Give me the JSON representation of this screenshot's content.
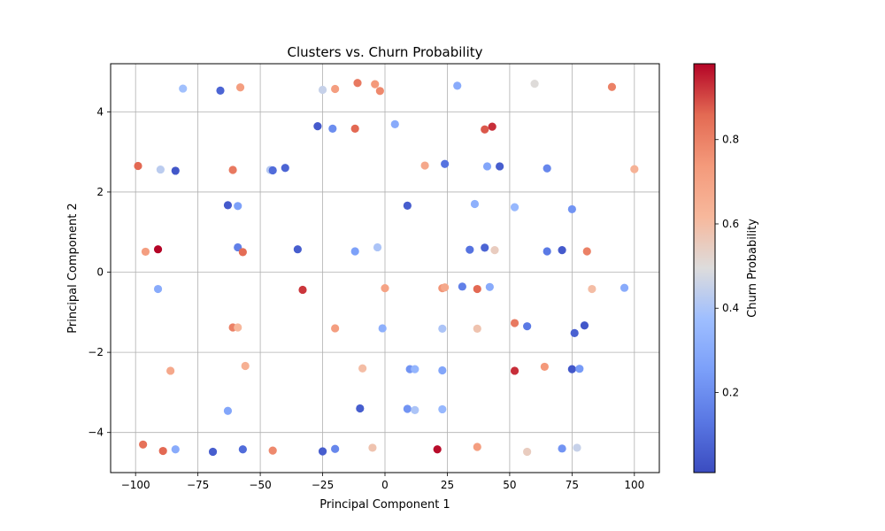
{
  "chart_data": {
    "type": "scatter",
    "title": "Clusters vs. Churn Probability",
    "xlabel": "Principal Component 1",
    "ylabel": "Principal Component 2",
    "xlim": [
      -110,
      110
    ],
    "ylim": [
      -5.0,
      5.2
    ],
    "xticks": [
      -100,
      -75,
      -50,
      -25,
      0,
      25,
      50,
      75,
      100
    ],
    "xtick_labels": [
      "−100",
      "−75",
      "−50",
      "−25",
      "0",
      "25",
      "50",
      "75",
      "100"
    ],
    "yticks": [
      -4,
      -2,
      0,
      2,
      4
    ],
    "ytick_labels": [
      "−4",
      "−2",
      "0",
      "2",
      "4"
    ],
    "grid": true,
    "colormap": "coolwarm",
    "colorbar": {
      "label": "Churn Probability",
      "range": [
        0.01,
        0.98
      ],
      "ticks": [
        0.2,
        0.4,
        0.6,
        0.8
      ],
      "tick_labels": [
        "0.2",
        "0.4",
        "0.6",
        "0.8"
      ]
    },
    "points": [
      {
        "x": -81,
        "y": 4.58,
        "c": 0.38
      },
      {
        "x": -66,
        "y": 4.53,
        "c": 0.08
      },
      {
        "x": -58,
        "y": 4.61,
        "c": 0.72
      },
      {
        "x": -25,
        "y": 4.55,
        "c": 0.45
      },
      {
        "x": -20,
        "y": 4.57,
        "c": 0.72
      },
      {
        "x": -11,
        "y": 4.72,
        "c": 0.82
      },
      {
        "x": -4,
        "y": 4.69,
        "c": 0.74
      },
      {
        "x": -2,
        "y": 4.52,
        "c": 0.78
      },
      {
        "x": 29,
        "y": 4.65,
        "c": 0.3
      },
      {
        "x": 60,
        "y": 4.7,
        "c": 0.5
      },
      {
        "x": 91,
        "y": 4.62,
        "c": 0.8
      },
      {
        "x": -27,
        "y": 3.64,
        "c": 0.05
      },
      {
        "x": -21,
        "y": 3.58,
        "c": 0.2
      },
      {
        "x": -12,
        "y": 3.58,
        "c": 0.86
      },
      {
        "x": 4,
        "y": 3.69,
        "c": 0.3
      },
      {
        "x": 40,
        "y": 3.56,
        "c": 0.88
      },
      {
        "x": 43,
        "y": 3.63,
        "c": 0.93
      },
      {
        "x": -99,
        "y": 2.65,
        "c": 0.86
      },
      {
        "x": -90,
        "y": 2.56,
        "c": 0.43
      },
      {
        "x": -84,
        "y": 2.53,
        "c": 0.04
      },
      {
        "x": -61,
        "y": 2.55,
        "c": 0.82
      },
      {
        "x": -46,
        "y": 2.55,
        "c": 0.42
      },
      {
        "x": -45,
        "y": 2.54,
        "c": 0.1
      },
      {
        "x": -40,
        "y": 2.6,
        "c": 0.08
      },
      {
        "x": 16,
        "y": 2.66,
        "c": 0.68
      },
      {
        "x": 24,
        "y": 2.7,
        "c": 0.12
      },
      {
        "x": 41,
        "y": 2.64,
        "c": 0.28
      },
      {
        "x": 46,
        "y": 2.64,
        "c": 0.06
      },
      {
        "x": 65,
        "y": 2.59,
        "c": 0.18
      },
      {
        "x": 100,
        "y": 2.57,
        "c": 0.64
      },
      {
        "x": -63,
        "y": 1.67,
        "c": 0.05
      },
      {
        "x": -59,
        "y": 1.65,
        "c": 0.26
      },
      {
        "x": 9,
        "y": 1.66,
        "c": 0.06
      },
      {
        "x": 36,
        "y": 1.7,
        "c": 0.32
      },
      {
        "x": 52,
        "y": 1.62,
        "c": 0.35
      },
      {
        "x": 75,
        "y": 1.57,
        "c": 0.22
      },
      {
        "x": -96,
        "y": 0.51,
        "c": 0.72
      },
      {
        "x": -91,
        "y": 0.57,
        "c": 0.98
      },
      {
        "x": -59,
        "y": 0.62,
        "c": 0.16
      },
      {
        "x": -57,
        "y": 0.5,
        "c": 0.85
      },
      {
        "x": -35,
        "y": 0.57,
        "c": 0.06
      },
      {
        "x": -12,
        "y": 0.52,
        "c": 0.26
      },
      {
        "x": -3,
        "y": 0.62,
        "c": 0.4
      },
      {
        "x": 34,
        "y": 0.56,
        "c": 0.12
      },
      {
        "x": 40,
        "y": 0.61,
        "c": 0.08
      },
      {
        "x": 44,
        "y": 0.55,
        "c": 0.55
      },
      {
        "x": 65,
        "y": 0.52,
        "c": 0.14
      },
      {
        "x": 71,
        "y": 0.55,
        "c": 0.05
      },
      {
        "x": 81,
        "y": 0.52,
        "c": 0.8
      },
      {
        "x": -91,
        "y": -0.42,
        "c": 0.3
      },
      {
        "x": -33,
        "y": -0.44,
        "c": 0.92
      },
      {
        "x": 0,
        "y": -0.4,
        "c": 0.7
      },
      {
        "x": 23,
        "y": -0.4,
        "c": 0.75
      },
      {
        "x": 24,
        "y": -0.38,
        "c": 0.68
      },
      {
        "x": 31,
        "y": -0.36,
        "c": 0.16
      },
      {
        "x": 37,
        "y": -0.42,
        "c": 0.86
      },
      {
        "x": 42,
        "y": -0.37,
        "c": 0.3
      },
      {
        "x": 83,
        "y": -0.42,
        "c": 0.6
      },
      {
        "x": 96,
        "y": -0.39,
        "c": 0.3
      },
      {
        "x": -61,
        "y": -1.38,
        "c": 0.8
      },
      {
        "x": -59,
        "y": -1.38,
        "c": 0.62
      },
      {
        "x": -20,
        "y": -1.4,
        "c": 0.72
      },
      {
        "x": -1,
        "y": -1.4,
        "c": 0.32
      },
      {
        "x": 23,
        "y": -1.41,
        "c": 0.4
      },
      {
        "x": 37,
        "y": -1.41,
        "c": 0.58
      },
      {
        "x": 52,
        "y": -1.27,
        "c": 0.82
      },
      {
        "x": 57,
        "y": -1.35,
        "c": 0.14
      },
      {
        "x": 76,
        "y": -1.52,
        "c": 0.07
      },
      {
        "x": 80,
        "y": -1.33,
        "c": 0.04
      },
      {
        "x": -86,
        "y": -2.46,
        "c": 0.68
      },
      {
        "x": -56,
        "y": -2.34,
        "c": 0.65
      },
      {
        "x": -9,
        "y": -2.4,
        "c": 0.6
      },
      {
        "x": 10,
        "y": -2.42,
        "c": 0.22
      },
      {
        "x": 12,
        "y": -2.42,
        "c": 0.34
      },
      {
        "x": 23,
        "y": -2.45,
        "c": 0.28
      },
      {
        "x": 52,
        "y": -2.46,
        "c": 0.93
      },
      {
        "x": 64,
        "y": -2.36,
        "c": 0.74
      },
      {
        "x": 75,
        "y": -2.42,
        "c": 0.04
      },
      {
        "x": 78,
        "y": -2.41,
        "c": 0.24
      },
      {
        "x": -63,
        "y": -3.46,
        "c": 0.28
      },
      {
        "x": -10,
        "y": -3.4,
        "c": 0.06
      },
      {
        "x": 9,
        "y": -3.41,
        "c": 0.22
      },
      {
        "x": 12,
        "y": -3.44,
        "c": 0.4
      },
      {
        "x": 23,
        "y": -3.42,
        "c": 0.35
      },
      {
        "x": -97,
        "y": -4.3,
        "c": 0.84
      },
      {
        "x": -89,
        "y": -4.46,
        "c": 0.86
      },
      {
        "x": -84,
        "y": -4.42,
        "c": 0.3
      },
      {
        "x": -69,
        "y": -4.48,
        "c": 0.06
      },
      {
        "x": -57,
        "y": -4.42,
        "c": 0.1
      },
      {
        "x": -45,
        "y": -4.45,
        "c": 0.78
      },
      {
        "x": -25,
        "y": -4.47,
        "c": 0.06
      },
      {
        "x": -20,
        "y": -4.41,
        "c": 0.18
      },
      {
        "x": -5,
        "y": -4.38,
        "c": 0.58
      },
      {
        "x": 21,
        "y": -4.42,
        "c": 0.97
      },
      {
        "x": 37,
        "y": -4.36,
        "c": 0.72
      },
      {
        "x": 57,
        "y": -4.48,
        "c": 0.55
      },
      {
        "x": 71,
        "y": -4.4,
        "c": 0.22
      },
      {
        "x": 77,
        "y": -4.38,
        "c": 0.45
      }
    ]
  }
}
